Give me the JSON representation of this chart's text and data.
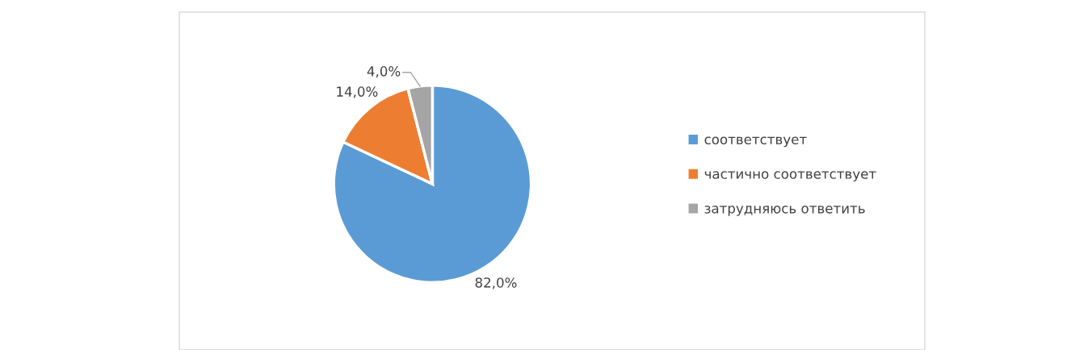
{
  "chart_data": {
    "type": "pie",
    "categories": [
      "соответствует",
      "частично соответствует",
      "затрудняюсь ответить"
    ],
    "values": [
      82,
      14,
      4
    ],
    "value_labels": [
      "82,0%",
      "14,0%",
      "4,0%"
    ],
    "colors": [
      "#5b9bd5",
      "#ed7d31",
      "#a5a5a5"
    ],
    "legend": "right"
  }
}
